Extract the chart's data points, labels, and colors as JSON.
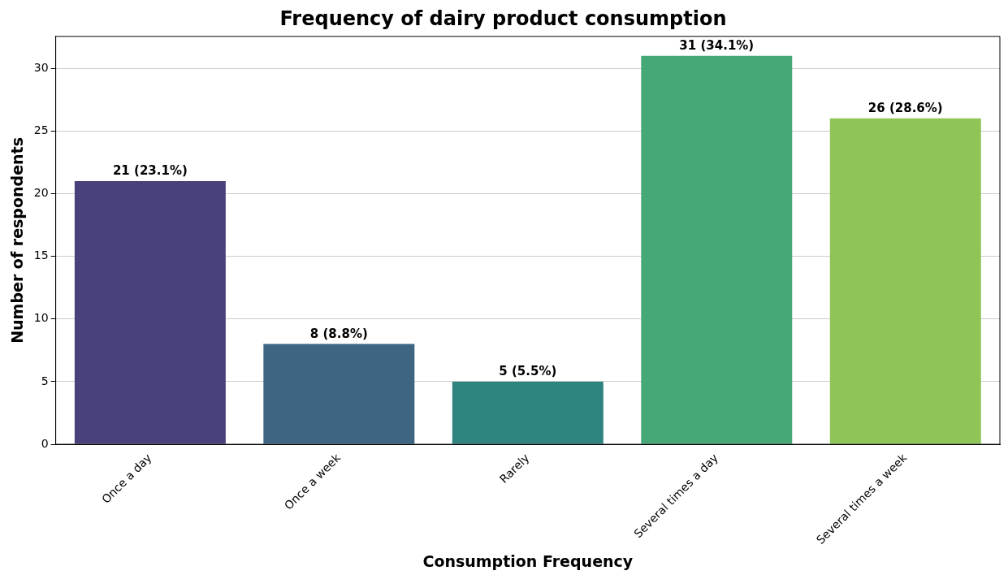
{
  "chart_data": {
    "type": "bar",
    "title": "Frequency of dairy product consumption",
    "xlabel": "Consumption Frequency",
    "ylabel": "Number of respondents",
    "categories": [
      "Once a day",
      "Once a week",
      "Rarely",
      "Several times a day",
      "Several times a week"
    ],
    "values": [
      21,
      8,
      5,
      31,
      26
    ],
    "colors": [
      "#48417a",
      "#3e6682",
      "#2e837f",
      "#46a777",
      "#8fc457"
    ],
    "value_labels": [
      "21 (23.1%)",
      "8 (8.8%)",
      "5 (5.5%)",
      "31 (34.1%)",
      "26 (28.6%)"
    ],
    "ylim": [
      0,
      32.55
    ],
    "yticks": [
      0,
      5,
      10,
      15,
      20,
      25,
      30
    ],
    "grid": "y",
    "legend": false
  }
}
